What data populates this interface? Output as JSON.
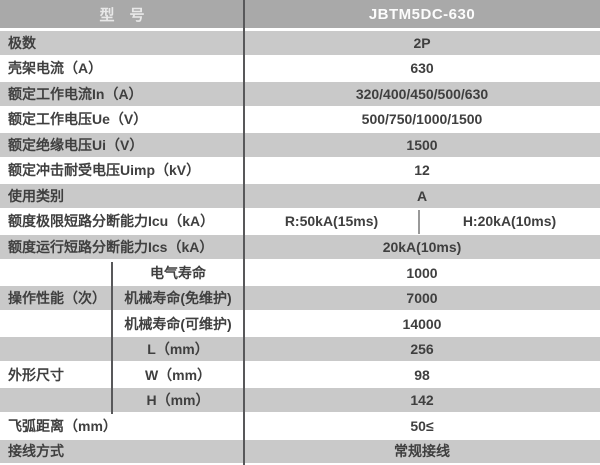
{
  "table": {
    "header": {
      "label": "型　号",
      "model": "JBTM5DC-630"
    },
    "rows": {
      "poles": {
        "label": "极数",
        "value": "2P"
      },
      "frame_current": {
        "label": "壳架电流（A）",
        "value": "630"
      },
      "rated_working_current": {
        "label": "额定工作电流In（A）",
        "value": "320/400/450/500/630"
      },
      "rated_working_voltage": {
        "label": "额定工作电压Ue（V）",
        "value": "500/750/1000/1500"
      },
      "rated_insulation_voltage": {
        "label": "额定绝缘电压Ui（V）",
        "value": "1500"
      },
      "rated_impulse_voltage": {
        "label": "额定冲击耐受电压Uimp（kV）",
        "value": "12"
      },
      "utilization_category": {
        "label": "使用类别",
        "value": "A"
      },
      "icu": {
        "label": "额度极限短路分断能力Icu（kA）",
        "value_r": "R:50kA(15ms)",
        "value_h": "H:20kA(10ms)"
      },
      "ics": {
        "label": "额度运行短路分断能力Ics（kA）",
        "value": "20kA(10ms)"
      },
      "operating_performance": {
        "group_label": "操作性能（次）",
        "electrical_life": {
          "label": "电气寿命",
          "value": "1000"
        },
        "mechanical_life_maintenance_free": {
          "label": "机械寿命(免维护)",
          "value": "7000"
        },
        "mechanical_life_maintainable": {
          "label": "机械寿命(可维护)",
          "value": "14000"
        }
      },
      "overall_dimensions": {
        "group_label": "外形尺寸",
        "length": {
          "label": "L（mm）",
          "value": "256"
        },
        "width": {
          "label": "W（mm）",
          "value": "98"
        },
        "height": {
          "label": "H（mm）",
          "value": "142"
        }
      },
      "arcing_distance": {
        "label": "飞弧距离（mm）",
        "value": "50≤"
      },
      "wiring_method": {
        "label": "接线方式",
        "value": "常规接线"
      }
    },
    "colors": {
      "header_bg": "#a9a9a9",
      "header_text": "#fcfcfc",
      "stripe_bg": "#c9c9c9",
      "row_bg": "#ffffff",
      "text": "#3f3f3f",
      "divider": "#58585a"
    }
  }
}
